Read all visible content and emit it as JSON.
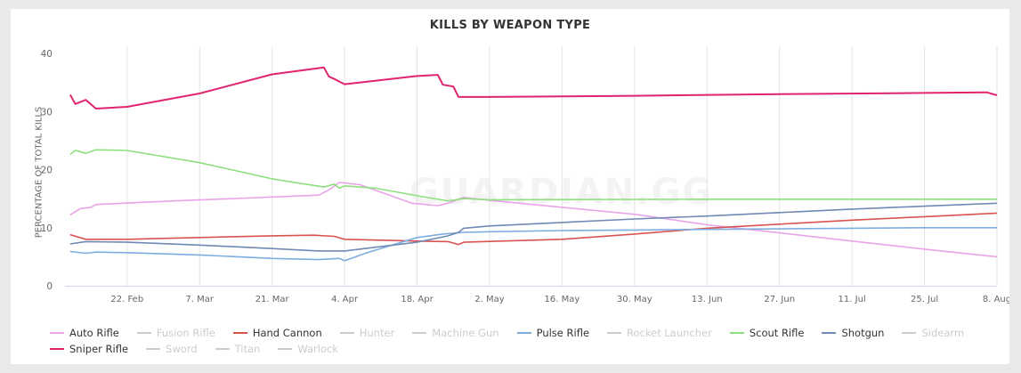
{
  "chart_data": {
    "type": "line",
    "title": "KILLS BY WEAPON TYPE",
    "ylabel": "PERCENTAGE OF TOTAL KILLS",
    "xlabel": "",
    "ylim": [
      0,
      40
    ],
    "yticks": [
      0,
      10,
      20,
      30,
      40
    ],
    "xlim": [
      "2016-02-10",
      "2016-08-08"
    ],
    "xticks": [
      {
        "date": "2016-02-22",
        "label": "22. Feb"
      },
      {
        "date": "2016-03-07",
        "label": "7. Mar"
      },
      {
        "date": "2016-03-21",
        "label": "21. Mar"
      },
      {
        "date": "2016-04-04",
        "label": "4. Apr"
      },
      {
        "date": "2016-04-18",
        "label": "18. Apr"
      },
      {
        "date": "2016-05-02",
        "label": "2. May"
      },
      {
        "date": "2016-05-16",
        "label": "16. May"
      },
      {
        "date": "2016-05-30",
        "label": "30. May"
      },
      {
        "date": "2016-06-13",
        "label": "13. Jun"
      },
      {
        "date": "2016-06-27",
        "label": "27. Jun"
      },
      {
        "date": "2016-07-11",
        "label": "11. Jul"
      },
      {
        "date": "2016-07-25",
        "label": "25. Jul"
      },
      {
        "date": "2016-08-08",
        "label": "8. Aug"
      }
    ],
    "grid": {
      "x": true,
      "y": false
    },
    "legend_position": "bottom",
    "series": [
      {
        "name": "Auto Rifle",
        "color": "#e9a3e8",
        "visible": true,
        "points": [
          [
            "2016-02-11",
            12.2
          ],
          [
            "2016-02-13",
            13.3
          ],
          [
            "2016-02-15",
            13.5
          ],
          [
            "2016-02-16",
            14.0
          ],
          [
            "2016-03-02",
            14.6
          ],
          [
            "2016-03-16",
            15.1
          ],
          [
            "2016-03-30",
            15.6
          ],
          [
            "2016-04-01",
            16.5
          ],
          [
            "2016-04-03",
            17.8
          ],
          [
            "2016-04-07",
            17.4
          ],
          [
            "2016-04-12",
            15.8
          ],
          [
            "2016-04-17",
            14.2
          ],
          [
            "2016-04-22",
            13.8
          ],
          [
            "2016-04-24",
            14.2
          ],
          [
            "2016-04-27",
            15.2
          ],
          [
            "2016-05-02",
            14.7
          ],
          [
            "2016-05-30",
            12.3
          ],
          [
            "2016-06-13",
            10.5
          ],
          [
            "2016-06-27",
            9.1
          ],
          [
            "2016-07-11",
            7.7
          ],
          [
            "2016-07-25",
            6.3
          ],
          [
            "2016-08-08",
            5.0
          ]
        ]
      },
      {
        "name": "Fusion Rifle",
        "color": "#d4d4d4",
        "visible": false,
        "points": []
      },
      {
        "name": "Hand Cannon",
        "color": "#d9534f",
        "visible": true,
        "points": [
          [
            "2016-02-11",
            8.8
          ],
          [
            "2016-02-14",
            8.0
          ],
          [
            "2016-02-22",
            8.0
          ],
          [
            "2016-03-07",
            8.3
          ],
          [
            "2016-03-21",
            8.6
          ],
          [
            "2016-03-29",
            8.7
          ],
          [
            "2016-04-02",
            8.5
          ],
          [
            "2016-04-04",
            8.0
          ],
          [
            "2016-04-18",
            7.7
          ],
          [
            "2016-04-24",
            7.6
          ],
          [
            "2016-04-26",
            7.1
          ],
          [
            "2016-04-27",
            7.5
          ],
          [
            "2016-05-16",
            8.0
          ],
          [
            "2016-05-30",
            8.9
          ],
          [
            "2016-06-13",
            9.9
          ],
          [
            "2016-06-27",
            10.6
          ],
          [
            "2016-07-11",
            11.3
          ],
          [
            "2016-07-25",
            11.9
          ],
          [
            "2016-08-08",
            12.5
          ]
        ]
      },
      {
        "name": "Hunter",
        "color": "#d4d4d4",
        "visible": false,
        "points": []
      },
      {
        "name": "Machine Gun",
        "color": "#d4d4d4",
        "visible": false,
        "points": []
      },
      {
        "name": "Pulse Rifle",
        "color": "#7eaee0",
        "visible": true,
        "points": [
          [
            "2016-02-11",
            5.9
          ],
          [
            "2016-02-14",
            5.6
          ],
          [
            "2016-02-16",
            5.8
          ],
          [
            "2016-02-22",
            5.7
          ],
          [
            "2016-03-07",
            5.3
          ],
          [
            "2016-03-21",
            4.7
          ],
          [
            "2016-03-30",
            4.5
          ],
          [
            "2016-04-03",
            4.7
          ],
          [
            "2016-04-04",
            4.3
          ],
          [
            "2016-04-08",
            5.6
          ],
          [
            "2016-04-18",
            8.3
          ],
          [
            "2016-04-23",
            8.9
          ],
          [
            "2016-04-27",
            9.2
          ],
          [
            "2016-05-02",
            9.3
          ],
          [
            "2016-05-16",
            9.5
          ],
          [
            "2016-05-30",
            9.6
          ],
          [
            "2016-06-13",
            9.7
          ],
          [
            "2016-06-27",
            9.8
          ],
          [
            "2016-07-11",
            9.9
          ],
          [
            "2016-07-25",
            10.0
          ],
          [
            "2016-08-08",
            10.0
          ]
        ]
      },
      {
        "name": "Rocket Launcher",
        "color": "#d4d4d4",
        "visible": false,
        "points": []
      },
      {
        "name": "Scout Rifle",
        "color": "#8ee07e",
        "visible": true,
        "points": [
          [
            "2016-02-11",
            22.6
          ],
          [
            "2016-02-12",
            23.3
          ],
          [
            "2016-02-14",
            22.8
          ],
          [
            "2016-02-16",
            23.4
          ],
          [
            "2016-02-22",
            23.3
          ],
          [
            "2016-03-07",
            21.2
          ],
          [
            "2016-03-21",
            18.4
          ],
          [
            "2016-03-31",
            17.0
          ],
          [
            "2016-04-02",
            17.5
          ],
          [
            "2016-04-03",
            16.8
          ],
          [
            "2016-04-04",
            17.2
          ],
          [
            "2016-04-10",
            16.8
          ],
          [
            "2016-04-18",
            15.5
          ],
          [
            "2016-04-24",
            14.6
          ],
          [
            "2016-04-27",
            15.0
          ],
          [
            "2016-05-02",
            14.8
          ],
          [
            "2016-06-13",
            14.9
          ],
          [
            "2016-08-08",
            14.9
          ]
        ]
      },
      {
        "name": "Shotgun",
        "color": "#7189b5",
        "visible": true,
        "points": [
          [
            "2016-02-11",
            7.2
          ],
          [
            "2016-02-14",
            7.6
          ],
          [
            "2016-02-22",
            7.5
          ],
          [
            "2016-03-07",
            7.0
          ],
          [
            "2016-03-21",
            6.4
          ],
          [
            "2016-03-30",
            6.0
          ],
          [
            "2016-04-04",
            6.0
          ],
          [
            "2016-04-18",
            7.5
          ],
          [
            "2016-04-24",
            8.6
          ],
          [
            "2016-04-26",
            9.2
          ],
          [
            "2016-04-27",
            9.9
          ],
          [
            "2016-05-02",
            10.3
          ],
          [
            "2016-05-16",
            10.9
          ],
          [
            "2016-05-30",
            11.5
          ],
          [
            "2016-06-13",
            12.0
          ],
          [
            "2016-06-27",
            12.6
          ],
          [
            "2016-07-11",
            13.2
          ],
          [
            "2016-07-25",
            13.7
          ],
          [
            "2016-08-08",
            14.2
          ]
        ]
      },
      {
        "name": "Sidearm",
        "color": "#d4d4d4",
        "visible": false,
        "points": []
      },
      {
        "name": "Sniper Rifle",
        "color": "#e0246f",
        "visible": true,
        "points": [
          [
            "2016-02-11",
            32.9
          ],
          [
            "2016-02-12",
            31.3
          ],
          [
            "2016-02-14",
            32.0
          ],
          [
            "2016-02-16",
            30.5
          ],
          [
            "2016-02-22",
            30.8
          ],
          [
            "2016-03-07",
            33.1
          ],
          [
            "2016-03-21",
            36.4
          ],
          [
            "2016-03-31",
            37.6
          ],
          [
            "2016-04-01",
            36.0
          ],
          [
            "2016-04-02",
            35.6
          ],
          [
            "2016-04-04",
            34.7
          ],
          [
            "2016-04-18",
            36.1
          ],
          [
            "2016-04-22",
            36.3
          ],
          [
            "2016-04-23",
            34.6
          ],
          [
            "2016-04-25",
            34.3
          ],
          [
            "2016-04-26",
            32.5
          ],
          [
            "2016-05-02",
            32.5
          ],
          [
            "2016-05-30",
            32.7
          ],
          [
            "2016-06-27",
            33.0
          ],
          [
            "2016-07-25",
            33.2
          ],
          [
            "2016-08-06",
            33.3
          ],
          [
            "2016-08-08",
            32.8
          ]
        ]
      },
      {
        "name": "Sword",
        "color": "#d4d4d4",
        "visible": false,
        "points": []
      },
      {
        "name": "Titan",
        "color": "#d4d4d4",
        "visible": false,
        "points": []
      },
      {
        "name": "Warlock",
        "color": "#d4d4d4",
        "visible": false,
        "points": []
      }
    ],
    "watermark": "GUARDIAN.GG"
  }
}
